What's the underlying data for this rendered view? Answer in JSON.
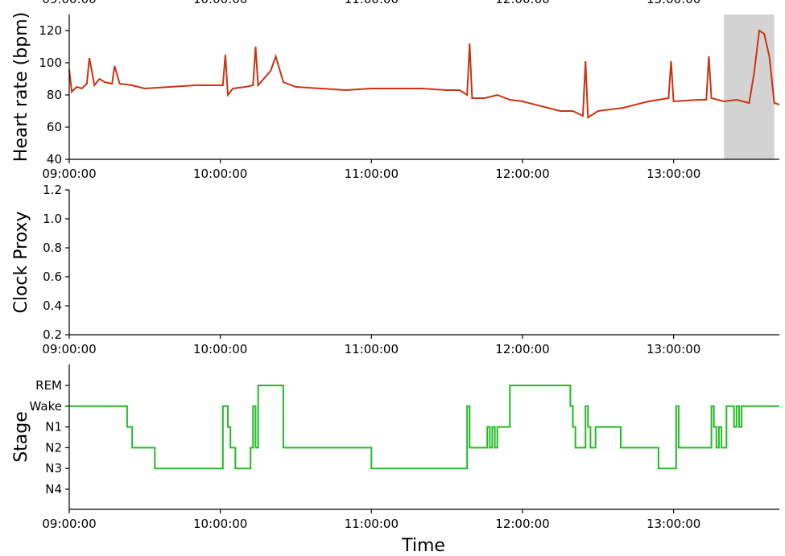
{
  "chart_data": [
    {
      "type": "line",
      "panel": "heart-rate",
      "ylabel": "Heart rate (bpm)",
      "xlabel": "",
      "x_tick_labels": [
        "09:00:00",
        "10:00:00",
        "11:00:00",
        "12:00:00",
        "13:00:00"
      ],
      "y_ticks": [
        40,
        60,
        80,
        100,
        120
      ],
      "ylim": [
        40,
        130
      ],
      "xlim_minutes_after_0900": [
        0,
        282
      ],
      "color": "#cc3311",
      "highlight_band": {
        "x_start": "13:20:00",
        "x_end": "13:40:00",
        "color": "#d3d3d3"
      },
      "series": [
        {
          "x": [
            "09:00:00",
            "09:01:00",
            "09:03:00",
            "09:05:00",
            "09:07:00",
            "09:08:00",
            "09:10:00",
            "09:12:00",
            "09:14:00",
            "09:17:00",
            "09:18:00",
            "09:20:00",
            "09:25:00",
            "09:30:00",
            "09:40:00",
            "09:50:00",
            "10:00:00",
            "10:01:00",
            "10:02:00",
            "10:03:00",
            "10:05:00",
            "10:10:00",
            "10:13:00",
            "10:14:00",
            "10:15:00",
            "10:20:00",
            "10:22:00",
            "10:25:00",
            "10:30:00",
            "10:40:00",
            "10:50:00",
            "11:00:00",
            "11:10:00",
            "11:20:00",
            "11:30:00",
            "11:35:00",
            "11:38:00",
            "11:39:00",
            "11:40:00",
            "11:45:00",
            "11:50:00",
            "11:55:00",
            "12:00:00",
            "12:10:00",
            "12:15:00",
            "12:20:00",
            "12:24:00",
            "12:25:00",
            "12:26:00",
            "12:30:00",
            "12:40:00",
            "12:50:00",
            "12:58:00",
            "12:59:00",
            "13:00:00",
            "13:10:00",
            "13:13:00",
            "13:14:00",
            "13:15:00",
            "13:20:00",
            "13:25:00",
            "13:30:00",
            "13:32:00",
            "13:34:00",
            "13:36:00",
            "13:38:00",
            "13:40:00",
            "13:42:00"
          ],
          "y": [
            96,
            82,
            85,
            84,
            87,
            103,
            86,
            90,
            88,
            87,
            98,
            87,
            86,
            84,
            85,
            86,
            86,
            86,
            105,
            80,
            84,
            85,
            86,
            110,
            86,
            95,
            104,
            88,
            85,
            84,
            83,
            84,
            84,
            84,
            83,
            83,
            80,
            112,
            78,
            78,
            80,
            77,
            76,
            72,
            70,
            70,
            67,
            101,
            66,
            70,
            72,
            76,
            78,
            101,
            76,
            77,
            77,
            104,
            78,
            76,
            77,
            75,
            94,
            120,
            118,
            104,
            75,
            74
          ]
        }
      ]
    },
    {
      "type": "line",
      "panel": "clock-proxy",
      "ylabel": "Clock Proxy",
      "xlabel": "",
      "x_tick_labels": [
        "09:00:00",
        "10:00:00",
        "11:00:00",
        "12:00:00",
        "13:00:00"
      ],
      "y_tick_labels": [
        "0.2",
        "0.4",
        "0.6",
        "0.8",
        "1.0",
        "1.2"
      ],
      "ylim": [
        0.2,
        1.2
      ],
      "series": []
    },
    {
      "type": "line",
      "panel": "sleep-stage",
      "ylabel": "Stage",
      "xlabel": "Time",
      "x_tick_labels": [
        "09:00:00",
        "10:00:00",
        "11:00:00",
        "12:00:00",
        "13:00:00"
      ],
      "y_categories": [
        "REM",
        "Wake",
        "N1",
        "N2",
        "N3",
        "N4"
      ],
      "color": "#22bb22",
      "series": [
        {
          "x": [
            "09:00:00",
            "09:23:00",
            "09:24:00",
            "09:25:00",
            "09:34:00",
            "10:01:00",
            "10:03:00",
            "10:04:00",
            "10:06:00",
            "10:12:00",
            "10:13:00",
            "10:14:00",
            "10:15:00",
            "10:25:00",
            "11:00:00",
            "11:38:00",
            "11:39:00",
            "11:46:00",
            "11:47:00",
            "11:48:00",
            "11:49:00",
            "11:50:00",
            "11:55:00",
            "12:19:00",
            "12:20:00",
            "12:21:00",
            "12:25:00",
            "12:26:00",
            "12:27:00",
            "12:28:00",
            "12:29:00",
            "12:39:00",
            "12:40:00",
            "12:54:00",
            "13:01:00",
            "13:02:00",
            "13:15:00",
            "13:16:00",
            "13:17:00",
            "13:18:00",
            "13:19:00",
            "13:20:00",
            "13:21:00",
            "13:24:00",
            "13:25:00",
            "13:26:00",
            "13:27:00",
            "13:28:00",
            "13:42:00"
          ],
          "y": [
            "Wake",
            "N1",
            "N1",
            "N2",
            "N3",
            "Wake",
            "N1",
            "N2",
            "N3",
            "N2",
            "Wake",
            "N2",
            "REM",
            "N2",
            "N3",
            "Wake",
            "N2",
            "N1",
            "N2",
            "N1",
            "N2",
            "N1",
            "REM",
            "Wake",
            "N1",
            "N2",
            "Wake",
            "N1",
            "N2",
            "N2",
            "N1",
            "N2",
            "N2",
            "N3",
            "Wake",
            "N2",
            "Wake",
            "N1",
            "N2",
            "N1",
            "N2",
            "N2",
            "Wake",
            "N1",
            "Wake",
            "N1",
            "Wake",
            "Wake",
            "Wake"
          ]
        }
      ]
    }
  ]
}
